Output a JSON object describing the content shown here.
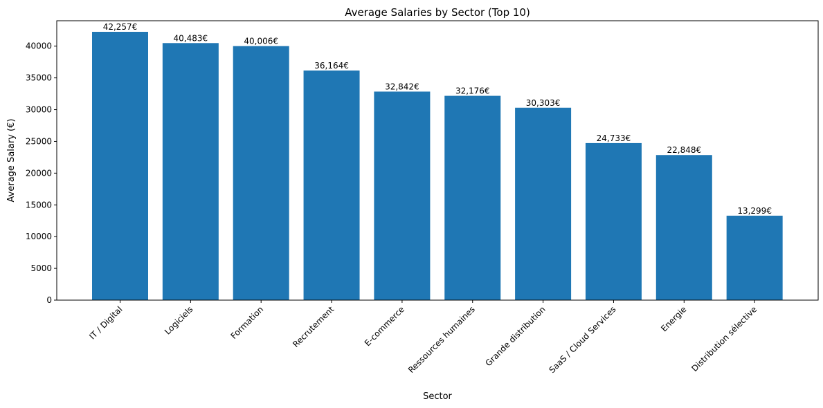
{
  "chart_data": {
    "type": "bar",
    "title": "Average Salaries by Sector (Top 10)",
    "xlabel": "Sector",
    "ylabel": "Average Salary (€)",
    "ylim": [
      0,
      44000
    ],
    "yticks": [
      0,
      5000,
      10000,
      15000,
      20000,
      25000,
      30000,
      35000,
      40000
    ],
    "categories": [
      "IT / Digital",
      "Logiciels",
      "Formation",
      "Recrutement",
      "E-commerce",
      "Ressources humaines",
      "Grande distribution",
      "SaaS / Cloud Services",
      "Energie",
      "Distribution sélective"
    ],
    "values": [
      42257,
      40483,
      40006,
      36164,
      32842,
      32176,
      30303,
      24733,
      22848,
      13299
    ],
    "data_labels": [
      "42,257€",
      "40,483€",
      "40,006€",
      "36,164€",
      "32,842€",
      "32,176€",
      "30,303€",
      "24,733€",
      "22,848€",
      "13,299€"
    ],
    "bar_color": "#1f77b4",
    "grid": false,
    "legend": "none"
  }
}
